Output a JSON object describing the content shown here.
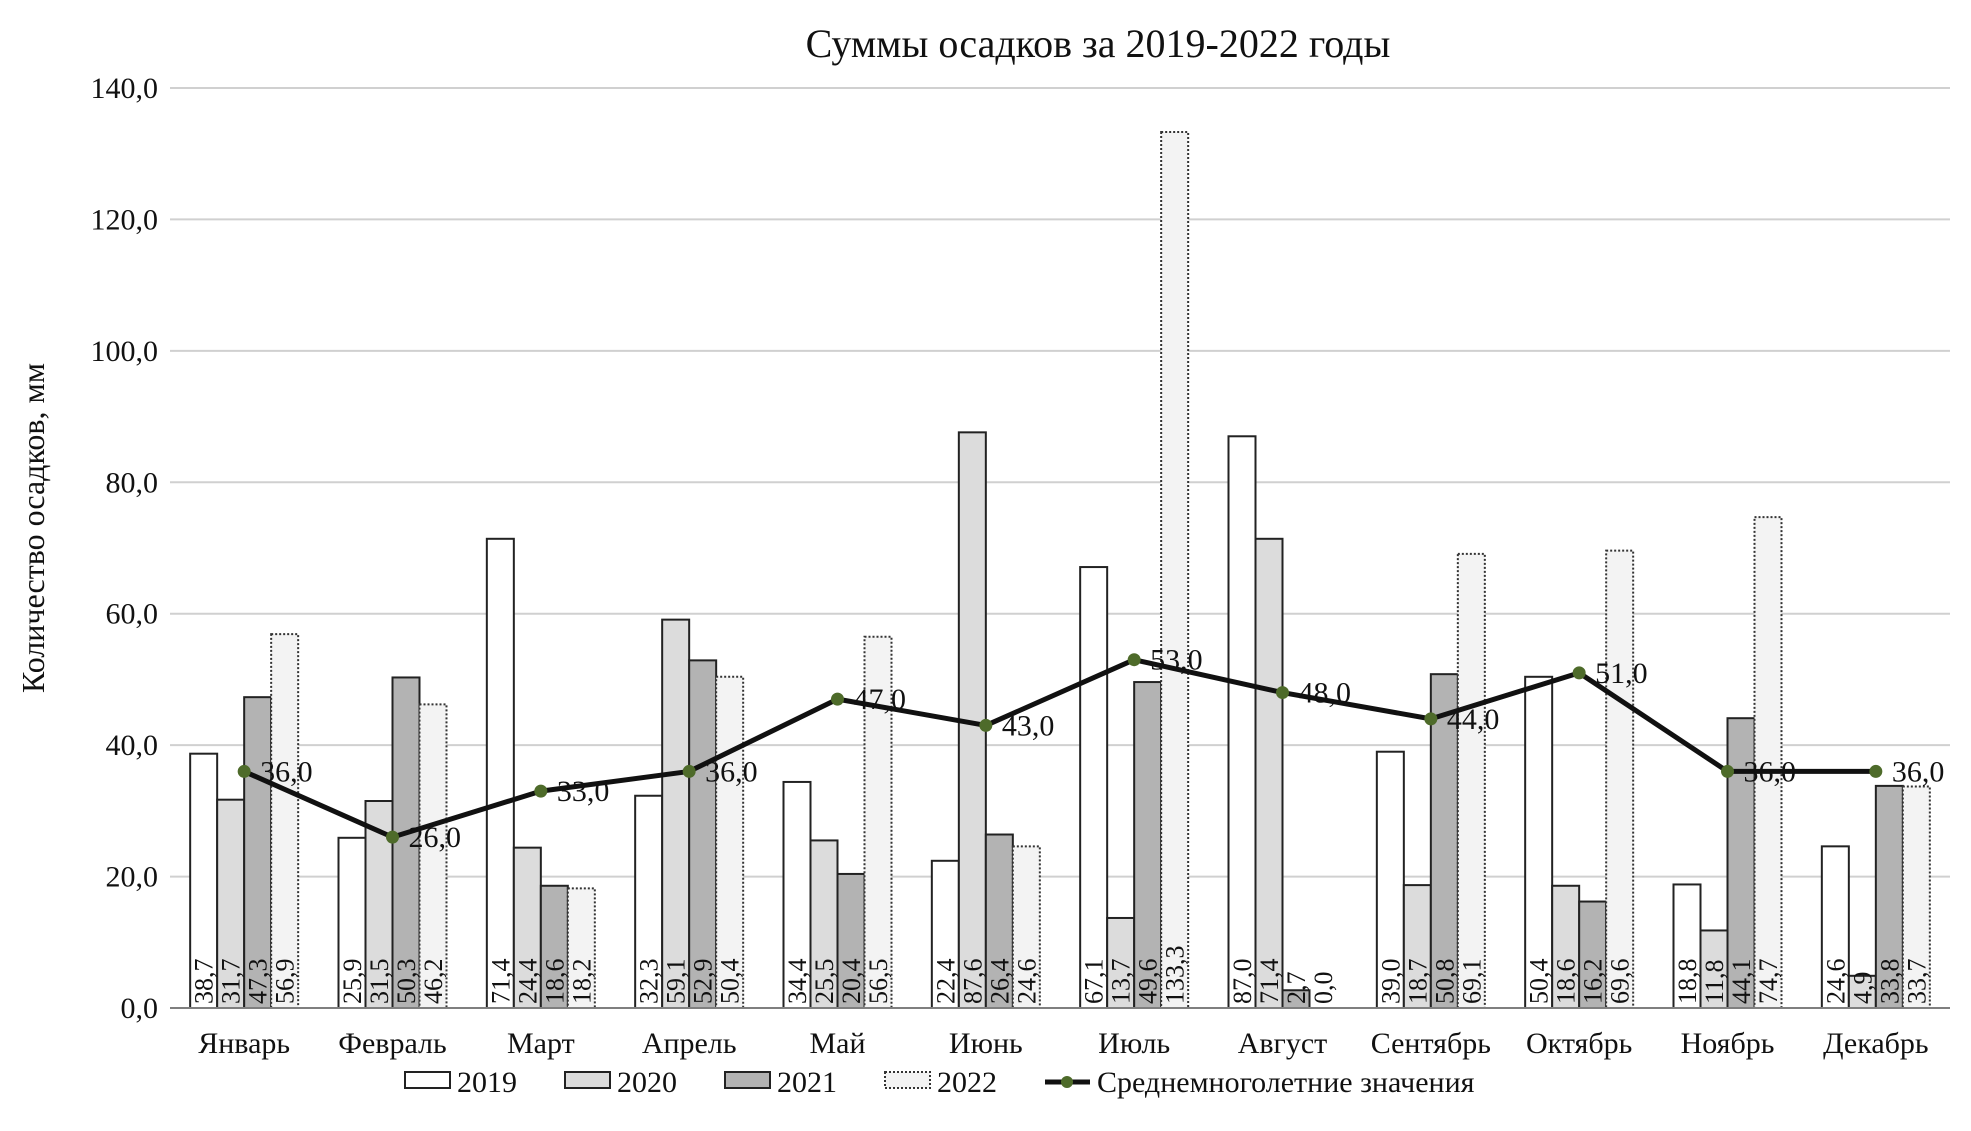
{
  "chart_data": {
    "type": "bar",
    "title": "Суммы осадков за 2019-2022 годы",
    "xlabel": "",
    "ylabel": "Количество осадков, мм",
    "ylim": [
      0,
      140
    ],
    "yticks": [
      "0,0",
      "20,0",
      "40,0",
      "60,0",
      "80,0",
      "100,0",
      "120,0",
      "140,0"
    ],
    "grid": true,
    "legend_position": "bottom",
    "categories": [
      "Январь",
      "Февраль",
      "Март",
      "Апрель",
      "Май",
      "Июнь",
      "Июль",
      "Август",
      "Сентябрь",
      "Октябрь",
      "Ноябрь",
      "Декабрь"
    ],
    "series": [
      {
        "name": "2019",
        "style": "white",
        "values": [
          38.7,
          25.9,
          71.4,
          32.3,
          34.4,
          22.4,
          67.1,
          87.0,
          39.0,
          50.4,
          18.8,
          24.6
        ],
        "labels": [
          "38,7",
          "25,9",
          "71,4",
          "32,3",
          "34,4",
          "22,4",
          "67,1",
          "87,0",
          "39,0",
          "50,4",
          "18,8",
          "24,6"
        ]
      },
      {
        "name": "2020",
        "style": "light",
        "values": [
          31.7,
          31.5,
          24.4,
          59.1,
          25.5,
          87.6,
          13.7,
          71.4,
          18.7,
          18.6,
          11.8,
          4.9
        ],
        "labels": [
          "31,7",
          "31,5",
          "24,4",
          "59,1",
          "25,5",
          "87,6",
          "13,7",
          "71,4",
          "18,7",
          "18,6",
          "11,8",
          "4,9"
        ]
      },
      {
        "name": "2021",
        "style": "dark",
        "values": [
          47.3,
          50.3,
          18.6,
          52.9,
          20.4,
          26.4,
          49.6,
          2.7,
          50.8,
          16.2,
          44.1,
          33.8
        ],
        "labels": [
          "47,3",
          "50,3",
          "18,6",
          "52,9",
          "20,4",
          "26,4",
          "49,6",
          "2,7",
          "50,8",
          "16,2",
          "44,1",
          "33,8"
        ]
      },
      {
        "name": "2022",
        "style": "dotted",
        "values": [
          56.9,
          46.2,
          18.2,
          50.4,
          56.5,
          24.6,
          133.3,
          0.0,
          69.1,
          69.6,
          74.7,
          33.7
        ],
        "labels": [
          "56,9",
          "46,2",
          "18,2",
          "50,4",
          "56,5",
          "24,6",
          "133,3",
          "0,0",
          "69,1",
          "69,6",
          "74,7",
          "33,7"
        ]
      }
    ],
    "line_series": {
      "name": "Среднемноголетние значения",
      "values": [
        36.0,
        26.0,
        33.0,
        36.0,
        47.0,
        43.0,
        53.0,
        48.0,
        44.0,
        51.0,
        36.0,
        36.0
      ],
      "labels": [
        "36,0",
        "26,0",
        "33,0",
        "36,0",
        "47,0",
        "43,0",
        "53,0",
        "48,0",
        "44,0",
        "51,0",
        "36,0",
        "36,0"
      ],
      "color": "#111111",
      "marker_color": "#4e6b2a"
    },
    "colors": {
      "white": "#ffffff",
      "light": "#dcdcdc",
      "dark": "#b3b3b3",
      "dotted": "#f3f3f3",
      "grid": "#d0d0d0",
      "axis": "#7f7f7f"
    }
  }
}
